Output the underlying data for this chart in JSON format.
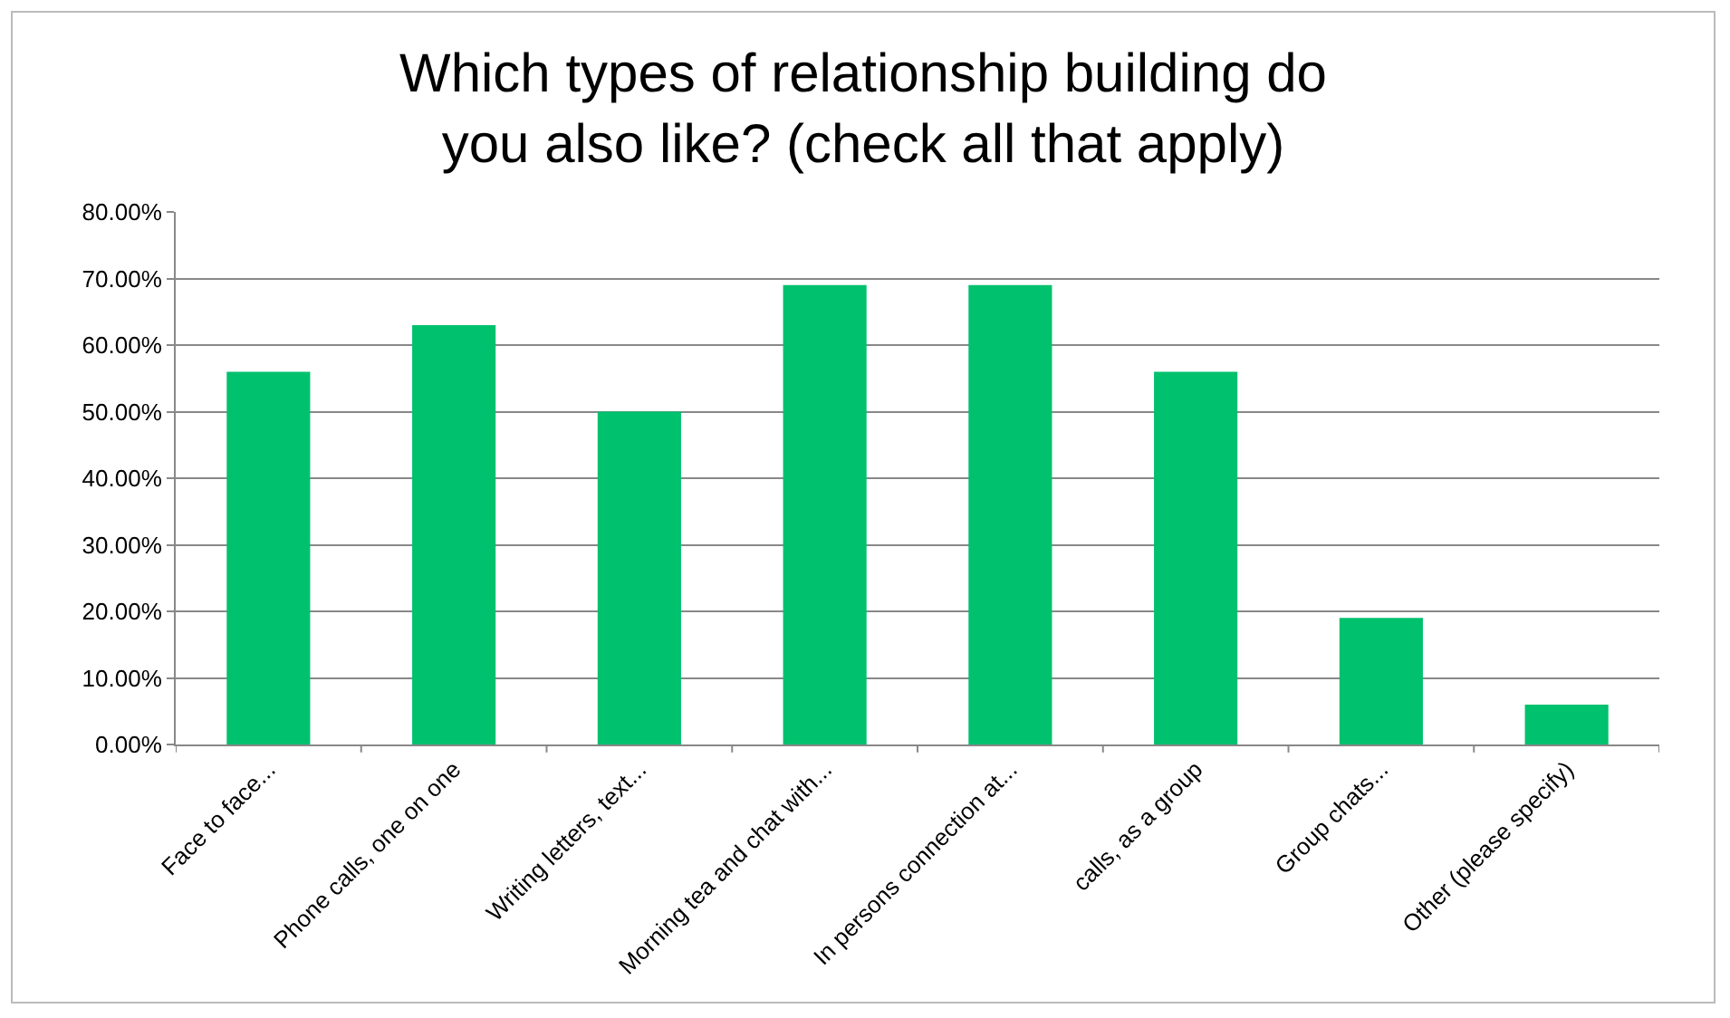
{
  "chart_data": {
    "type": "bar",
    "title": "Which types of relationship building do you also like? (check all that apply)",
    "categories": [
      "Face to face...",
      "Phone calls, one on one",
      "Writing letters, text...",
      "Morning tea and chat with...",
      "In persons connection at...",
      "calls, as a group",
      "Group chats...",
      "Other (please specify)"
    ],
    "values": [
      56,
      63,
      50,
      69,
      69,
      56,
      19,
      6
    ],
    "color": "#00c16e",
    "ylim": [
      0,
      80
    ],
    "yticks": [
      {
        "value": 0,
        "label": "0.00%"
      },
      {
        "value": 10,
        "label": "10.00%"
      },
      {
        "value": 20,
        "label": "20.00%"
      },
      {
        "value": 30,
        "label": "30.00%"
      },
      {
        "value": 40,
        "label": "40.00%"
      },
      {
        "value": 50,
        "label": "50.00%"
      },
      {
        "value": 60,
        "label": "60.00%"
      },
      {
        "value": 70,
        "label": "70.00%"
      },
      {
        "value": 80,
        "label": "80.00%"
      }
    ],
    "grid": "y"
  }
}
